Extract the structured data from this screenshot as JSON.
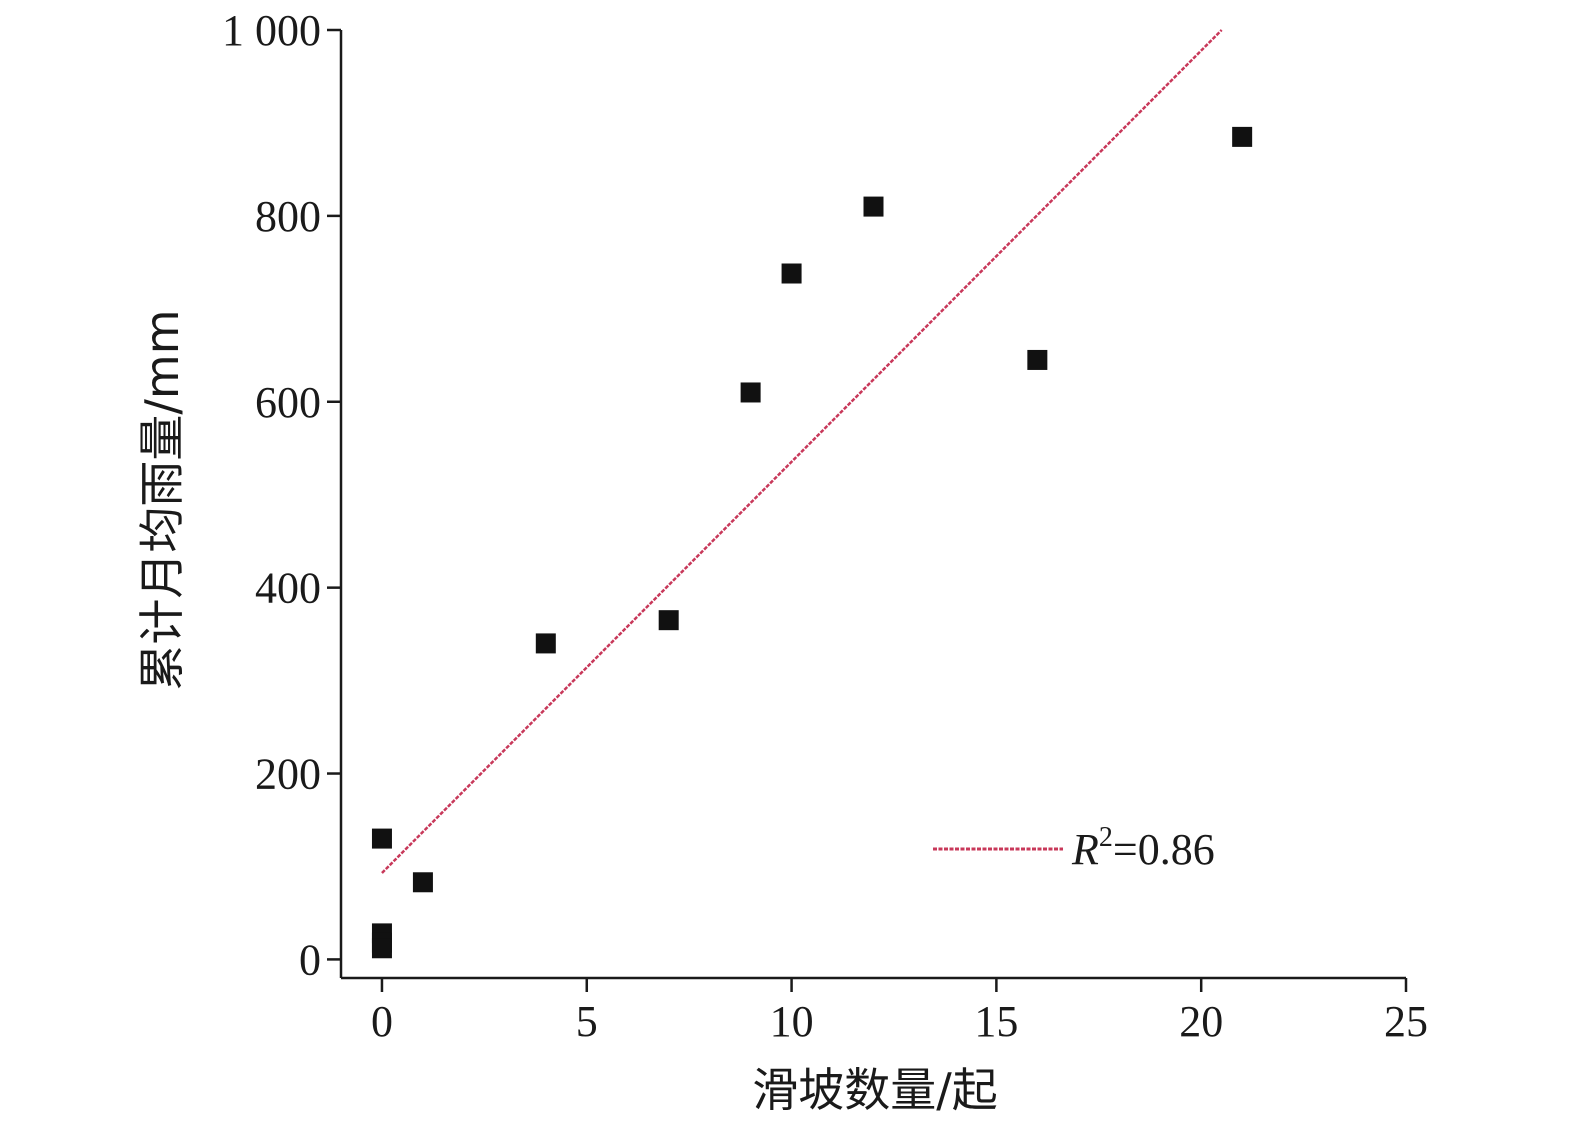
{
  "chart_data": {
    "type": "scatter",
    "title": "",
    "xlabel": "滑坡数量/起",
    "ylabel": "累计月均雨量/mm",
    "xlim": [
      -1,
      25
    ],
    "ylim": [
      -20,
      1000
    ],
    "x_ticks": [
      0,
      5,
      10,
      15,
      20,
      25
    ],
    "x_tick_labels": [
      "0",
      "5",
      "10",
      "15",
      "20",
      "25"
    ],
    "y_ticks": [
      0,
      200,
      400,
      600,
      800,
      1000
    ],
    "y_tick_labels": [
      "0",
      "200",
      "400",
      "600",
      "800",
      "1 000"
    ],
    "grid": false,
    "legend_position": "bottom-right",
    "colors": {
      "points": "#111111",
      "fit_line": "#c8385a",
      "axis": "#1a1a1a"
    },
    "series": [
      {
        "type": "scatter",
        "x": [
          0,
          0,
          0,
          0,
          1,
          4,
          7,
          9,
          10,
          12,
          16,
          21
        ],
        "y": [
          130,
          28,
          18,
          12,
          83,
          340,
          365,
          610,
          738,
          810,
          645,
          885
        ]
      },
      {
        "type": "line",
        "name": "R2=0.86",
        "x": [
          0,
          20.5
        ],
        "y": [
          93,
          1000
        ]
      }
    ],
    "legend": {
      "label_main": "R",
      "label_sup": "2",
      "label_rest": "=0.86"
    }
  }
}
